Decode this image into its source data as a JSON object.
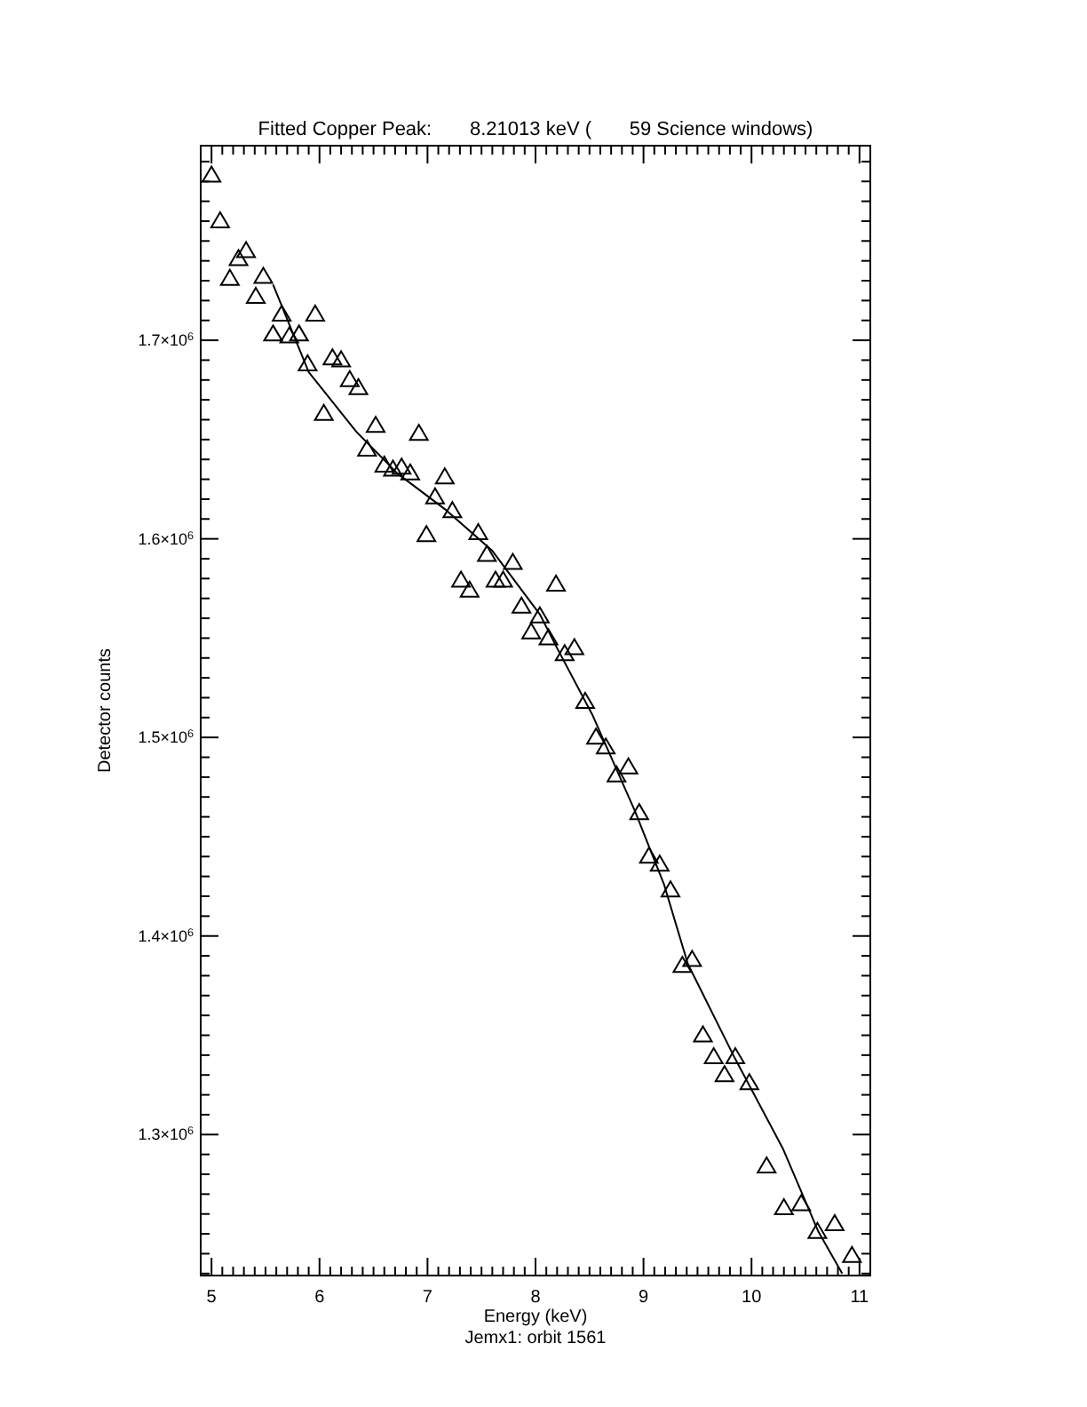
{
  "chart_data": {
    "type": "scatter",
    "title": "Fitted Copper Peak:       8.21013 keV (       59 Science windows)",
    "xlabel": "Energy (keV)",
    "ylabel": "Detector counts",
    "annotations": [
      "Jemx1: orbit 1561"
    ],
    "marker": "triangle",
    "grid": false,
    "xlim": [
      4.9,
      11.1
    ],
    "ylim": [
      1229000,
      1798000
    ],
    "xticks": [
      5,
      6,
      7,
      8,
      9,
      10,
      11,
      {
        "value": 4.9,
        "label": null
      },
      {
        "value": 5.1,
        "label": null
      },
      {
        "value": 5.2,
        "label": null
      },
      {
        "value": 5.3,
        "label": null
      },
      {
        "value": 5.4,
        "label": null
      },
      {
        "value": 5.5,
        "label": null
      },
      {
        "value": 5.6,
        "label": null
      },
      {
        "value": 5.7,
        "label": null
      },
      {
        "value": 5.8,
        "label": null
      },
      {
        "value": 5.9,
        "label": null
      },
      {
        "value": 6.1,
        "label": null
      },
      {
        "value": 6.2,
        "label": null
      },
      {
        "value": 6.3,
        "label": null
      },
      {
        "value": 6.4,
        "label": null
      },
      {
        "value": 6.5,
        "label": null
      },
      {
        "value": 6.6,
        "label": null
      },
      {
        "value": 6.7,
        "label": null
      },
      {
        "value": 6.8,
        "label": null
      },
      {
        "value": 6.9,
        "label": null
      },
      {
        "value": 7.1,
        "label": null
      },
      {
        "value": 7.2,
        "label": null
      },
      {
        "value": 7.3,
        "label": null
      },
      {
        "value": 7.4,
        "label": null
      },
      {
        "value": 7.5,
        "label": null
      },
      {
        "value": 7.6,
        "label": null
      },
      {
        "value": 7.7,
        "label": null
      },
      {
        "value": 7.8,
        "label": null
      },
      {
        "value": 7.9,
        "label": null
      },
      {
        "value": 8.1,
        "label": null
      },
      {
        "value": 8.2,
        "label": null
      },
      {
        "value": 8.3,
        "label": null
      },
      {
        "value": 8.4,
        "label": null
      },
      {
        "value": 8.5,
        "label": null
      },
      {
        "value": 8.6,
        "label": null
      },
      {
        "value": 8.7,
        "label": null
      },
      {
        "value": 8.8,
        "label": null
      },
      {
        "value": 8.9,
        "label": null
      },
      {
        "value": 9.1,
        "label": null
      },
      {
        "value": 9.2,
        "label": null
      },
      {
        "value": 9.3,
        "label": null
      },
      {
        "value": 9.4,
        "label": null
      },
      {
        "value": 9.5,
        "label": null
      },
      {
        "value": 9.6,
        "label": null
      },
      {
        "value": 9.7,
        "label": null
      },
      {
        "value": 9.8,
        "label": null
      },
      {
        "value": 9.9,
        "label": null
      },
      {
        "value": 10.1,
        "label": null
      },
      {
        "value": 10.2,
        "label": null
      },
      {
        "value": 10.3,
        "label": null
      },
      {
        "value": 10.4,
        "label": null
      },
      {
        "value": 10.5,
        "label": null
      },
      {
        "value": 10.6,
        "label": null
      },
      {
        "value": 10.7,
        "label": null
      },
      {
        "value": 10.8,
        "label": null
      },
      {
        "value": 10.9,
        "label": null
      },
      {
        "value": 11.1,
        "label": null
      }
    ],
    "yticks": [
      {
        "value": 1300000,
        "label": "1.3×10$^{6}$"
      },
      {
        "value": 1400000,
        "label": "1.4×10$^{6}$"
      },
      {
        "value": 1500000,
        "label": "1.5×10$^{6}$"
      },
      {
        "value": 1600000,
        "label": "1.6×10$^{6}$"
      },
      {
        "value": 1700000,
        "label": "1.7×10$^{6}$"
      },
      {
        "value": 1230000,
        "label": null
      },
      {
        "value": 1240000,
        "label": null
      },
      {
        "value": 1250000,
        "label": null
      },
      {
        "value": 1260000,
        "label": null
      },
      {
        "value": 1270000,
        "label": null
      },
      {
        "value": 1280000,
        "label": null
      },
      {
        "value": 1290000,
        "label": null
      },
      {
        "value": 1310000,
        "label": null
      },
      {
        "value": 1320000,
        "label": null
      },
      {
        "value": 1330000,
        "label": null
      },
      {
        "value": 1340000,
        "label": null
      },
      {
        "value": 1350000,
        "label": null
      },
      {
        "value": 1360000,
        "label": null
      },
      {
        "value": 1370000,
        "label": null
      },
      {
        "value": 1380000,
        "label": null
      },
      {
        "value": 1390000,
        "label": null
      },
      {
        "value": 1410000,
        "label": null
      },
      {
        "value": 1420000,
        "label": null
      },
      {
        "value": 1430000,
        "label": null
      },
      {
        "value": 1440000,
        "label": null
      },
      {
        "value": 1450000,
        "label": null
      },
      {
        "value": 1460000,
        "label": null
      },
      {
        "value": 1470000,
        "label": null
      },
      {
        "value": 1480000,
        "label": null
      },
      {
        "value": 1490000,
        "label": null
      },
      {
        "value": 1510000,
        "label": null
      },
      {
        "value": 1520000,
        "label": null
      },
      {
        "value": 1530000,
        "label": null
      },
      {
        "value": 1540000,
        "label": null
      },
      {
        "value": 1550000,
        "label": null
      },
      {
        "value": 1560000,
        "label": null
      },
      {
        "value": 1570000,
        "label": null
      },
      {
        "value": 1580000,
        "label": null
      },
      {
        "value": 1590000,
        "label": null
      },
      {
        "value": 1610000,
        "label": null
      },
      {
        "value": 1620000,
        "label": null
      },
      {
        "value": 1630000,
        "label": null
      },
      {
        "value": 1640000,
        "label": null
      },
      {
        "value": 1650000,
        "label": null
      },
      {
        "value": 1660000,
        "label": null
      },
      {
        "value": 1670000,
        "label": null
      },
      {
        "value": 1680000,
        "label": null
      },
      {
        "value": 1690000,
        "label": null
      },
      {
        "value": 1710000,
        "label": null
      },
      {
        "value": 1720000,
        "label": null
      },
      {
        "value": 1730000,
        "label": null
      },
      {
        "value": 1740000,
        "label": null
      },
      {
        "value": 1750000,
        "label": null
      },
      {
        "value": 1760000,
        "label": null
      },
      {
        "value": 1770000,
        "label": null
      },
      {
        "value": 1780000,
        "label": null
      },
      {
        "value": 1790000,
        "label": null
      }
    ],
    "series": [
      {
        "color": "#000000",
        "x": [
          5.0,
          5.08,
          5.17,
          5.25,
          5.32,
          5.41,
          5.48,
          5.57,
          5.65,
          5.72,
          5.81,
          5.89,
          5.96,
          6.04,
          6.12,
          6.2,
          6.28,
          6.36,
          6.44,
          6.52,
          6.6,
          6.68,
          6.76,
          6.84,
          6.92,
          6.99,
          7.07,
          7.16,
          7.23,
          7.31,
          7.39,
          7.47,
          7.55,
          7.63,
          7.7,
          7.79,
          7.87,
          7.96,
          8.04,
          8.12,
          8.19,
          8.27,
          8.36,
          8.46,
          8.56,
          8.65,
          8.75,
          8.86,
          8.96,
          9.05,
          9.15,
          9.25,
          9.36,
          9.45,
          9.55,
          9.65,
          9.75,
          9.85,
          9.98,
          10.14,
          10.3,
          10.46,
          10.61,
          10.77,
          10.93
        ],
        "values": [
          1783000,
          1760000,
          1731000,
          1741000,
          1745000,
          1722000,
          1732000,
          1703000,
          1713000,
          1702000,
          1703000,
          1688000,
          1713000,
          1663000,
          1691000,
          1690000,
          1680000,
          1676000,
          1645000,
          1657000,
          1637000,
          1635000,
          1636000,
          1633000,
          1653000,
          1602000,
          1621000,
          1631000,
          1614000,
          1579000,
          1574000,
          1603000,
          1592000,
          1579000,
          1579000,
          1588000,
          1566000,
          1553000,
          1561000,
          1550000,
          1577000,
          1542000,
          1545000,
          1518000,
          1500000,
          1495000,
          1481000,
          1485000,
          1462000,
          1440000,
          1436000,
          1423000,
          1385000,
          1388000,
          1350000,
          1339000,
          1330000,
          1339000,
          1326000,
          1284000,
          1263000,
          1265000,
          1251000,
          1255000,
          1239000
        ]
      },
      {
        "type": "line",
        "color": "#000000",
        "marker": "none",
        "line_style": "solid",
        "x": [
          5.57,
          5.9,
          6.34,
          6.72,
          7.16,
          7.6,
          7.82,
          8.04,
          8.2,
          8.53,
          8.92,
          9.19,
          9.41,
          9.85,
          10.29,
          10.62,
          10.84
        ],
        "values": [
          1728000,
          1684000,
          1654000,
          1633000,
          1615000,
          1594000,
          1578000,
          1562000,
          1545000,
          1511000,
          1463000,
          1426000,
          1386000,
          1338000,
          1293000,
          1251000,
          1230000
        ]
      }
    ]
  }
}
